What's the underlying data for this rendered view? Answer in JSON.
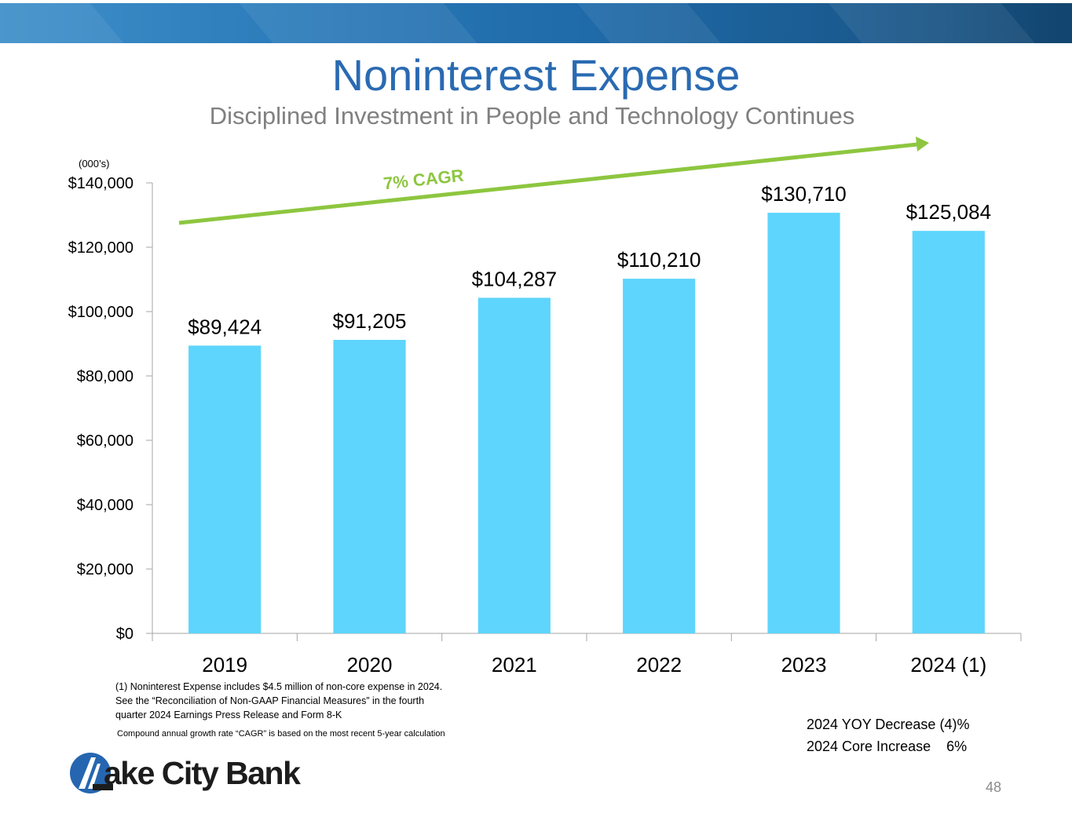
{
  "header": {
    "title": "Noninterest Expense",
    "subtitle": "Disciplined Investment in People and Technology Continues"
  },
  "units_label": "(000’s)",
  "cagr_label": "7% CAGR",
  "colors": {
    "bar": "#5ed5fc",
    "title": "#2a6ab2",
    "cagr_arrow": "#8dc63f",
    "banner": "#1f6aa8"
  },
  "chart_data": {
    "type": "bar",
    "categories": [
      "2019",
      "2020",
      "2021",
      "2022",
      "2023",
      "2024 (1)"
    ],
    "values": [
      89424,
      91205,
      104287,
      110210,
      130710,
      125084
    ],
    "data_labels": [
      "$89,424",
      "$91,205",
      "$104,287",
      "$110,210",
      "$130,710",
      "$125,084"
    ],
    "yticks": [
      "$0",
      "$20,000",
      "$40,000",
      "$60,000",
      "$80,000",
      "$100,000",
      "$120,000",
      "$140,000"
    ],
    "ylim": [
      0,
      140000
    ],
    "title": "Noninterest Expense",
    "subtitle": "Disciplined Investment in People and Technology Continues",
    "grid": false,
    "legend": "none",
    "annotations": [
      "7% CAGR"
    ]
  },
  "footnotes": {
    "line1": "(1) Noninterest Expense includes $4.5 million of non-core expense in 2024.",
    "line2": "See the “Reconciliation of Non-GAAP Financial Measures” in the fourth",
    "line3": "quarter 2024 Earnings Press Release and Form 8-K",
    "cagr_note": "Compound annual growth rate “CAGR” is based on the most recent 5-year calculation"
  },
  "summary": {
    "yoy": "2024 YOY Decrease (4)%",
    "core": "2024 Core Increase    6%"
  },
  "logo": {
    "text": "ake City Bank",
    "icon": "lake-city-bank-logo-icon"
  },
  "page_number": "48"
}
